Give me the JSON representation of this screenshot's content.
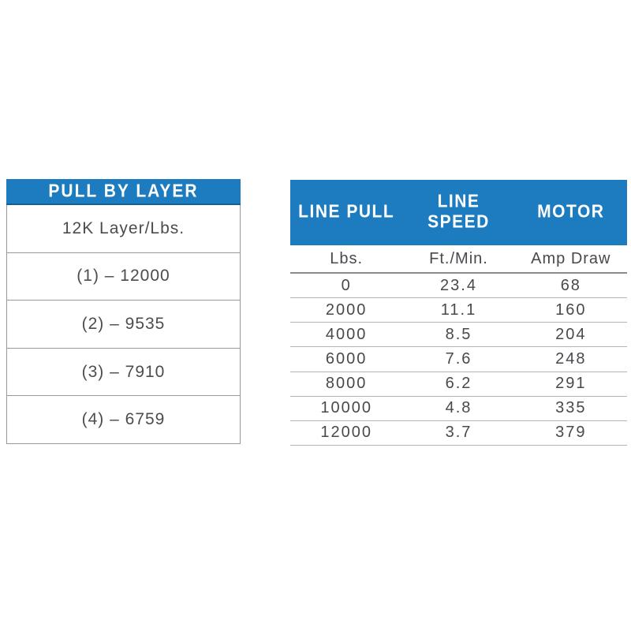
{
  "colors": {
    "header_blue": "#1d7cc0",
    "header_blue_edge": "#145e94",
    "text_dark": "#47494c",
    "border_gray": "#97989a",
    "row_line_gray": "#b4b5b7"
  },
  "pull_by_layer": {
    "title": "PULL BY LAYER",
    "subtitle": "12K Layer/Lbs.",
    "rows": [
      "(1) – 12000",
      "(2) – 9535",
      "(3) – 7910",
      "(4) – 6759"
    ]
  },
  "performance": {
    "columns": [
      {
        "label": "LINE PULL",
        "unit": "Lbs."
      },
      {
        "label": "LINE\nSPEED",
        "unit": "Ft./Min."
      },
      {
        "label": "MOTOR",
        "unit": "Amp Draw"
      }
    ],
    "rows": [
      [
        "0",
        "23.4",
        "68"
      ],
      [
        "2000",
        "11.1",
        "160"
      ],
      [
        "4000",
        "8.5",
        "204"
      ],
      [
        "6000",
        "7.6",
        "248"
      ],
      [
        "8000",
        "6.2",
        "291"
      ],
      [
        "10000",
        "4.8",
        "335"
      ],
      [
        "12000",
        "3.7",
        "379"
      ]
    ]
  },
  "chart_data": [
    {
      "type": "table",
      "title": "PULL BY LAYER",
      "columns": [
        "12K Layer/Lbs."
      ],
      "rows": [
        [
          "(1) – 12000"
        ],
        [
          "(2) – 9535"
        ],
        [
          "(3) – 7910"
        ],
        [
          "(4) – 6759"
        ]
      ]
    },
    {
      "type": "table",
      "title": "Winch performance",
      "columns": [
        "LINE PULL (Lbs.)",
        "LINE SPEED (Ft./Min.)",
        "MOTOR (Amp Draw)"
      ],
      "rows": [
        [
          0,
          23.4,
          68
        ],
        [
          2000,
          11.1,
          160
        ],
        [
          4000,
          8.5,
          204
        ],
        [
          6000,
          7.6,
          248
        ],
        [
          8000,
          6.2,
          291
        ],
        [
          10000,
          4.8,
          335
        ],
        [
          12000,
          3.7,
          379
        ]
      ]
    }
  ]
}
